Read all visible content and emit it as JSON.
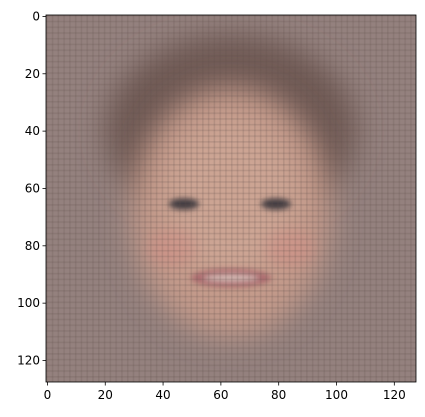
{
  "chart_data": {
    "type": "heatmap",
    "subtype": "image",
    "description": "blurred reconstructed face image",
    "title": "",
    "xlabel": "",
    "ylabel": "",
    "xlim": [
      -0.5,
      127.5
    ],
    "ylim": [
      127.5,
      -0.5
    ],
    "image_size": [
      128,
      128
    ],
    "xticks": [
      0,
      20,
      40,
      60,
      80,
      100,
      120
    ],
    "yticks": [
      0,
      20,
      40,
      60,
      80,
      100,
      120
    ],
    "xtick_labels": [
      "0",
      "20",
      "40",
      "60",
      "80",
      "100",
      "120"
    ],
    "ytick_labels": [
      "0",
      "20",
      "40",
      "60",
      "80",
      "100",
      "120"
    ],
    "grid": false,
    "legend": "none"
  },
  "colors": {
    "background": "#94817e",
    "hair": "#6f5a55",
    "skin": "#c39a8a",
    "skin_highlight": "#d4ad9c",
    "cheek": "#d08f86",
    "eye": "#3f3a40",
    "lips": "#a7636a",
    "teeth": "#d7c2bb",
    "grid_pattern": "#5f4c49"
  }
}
